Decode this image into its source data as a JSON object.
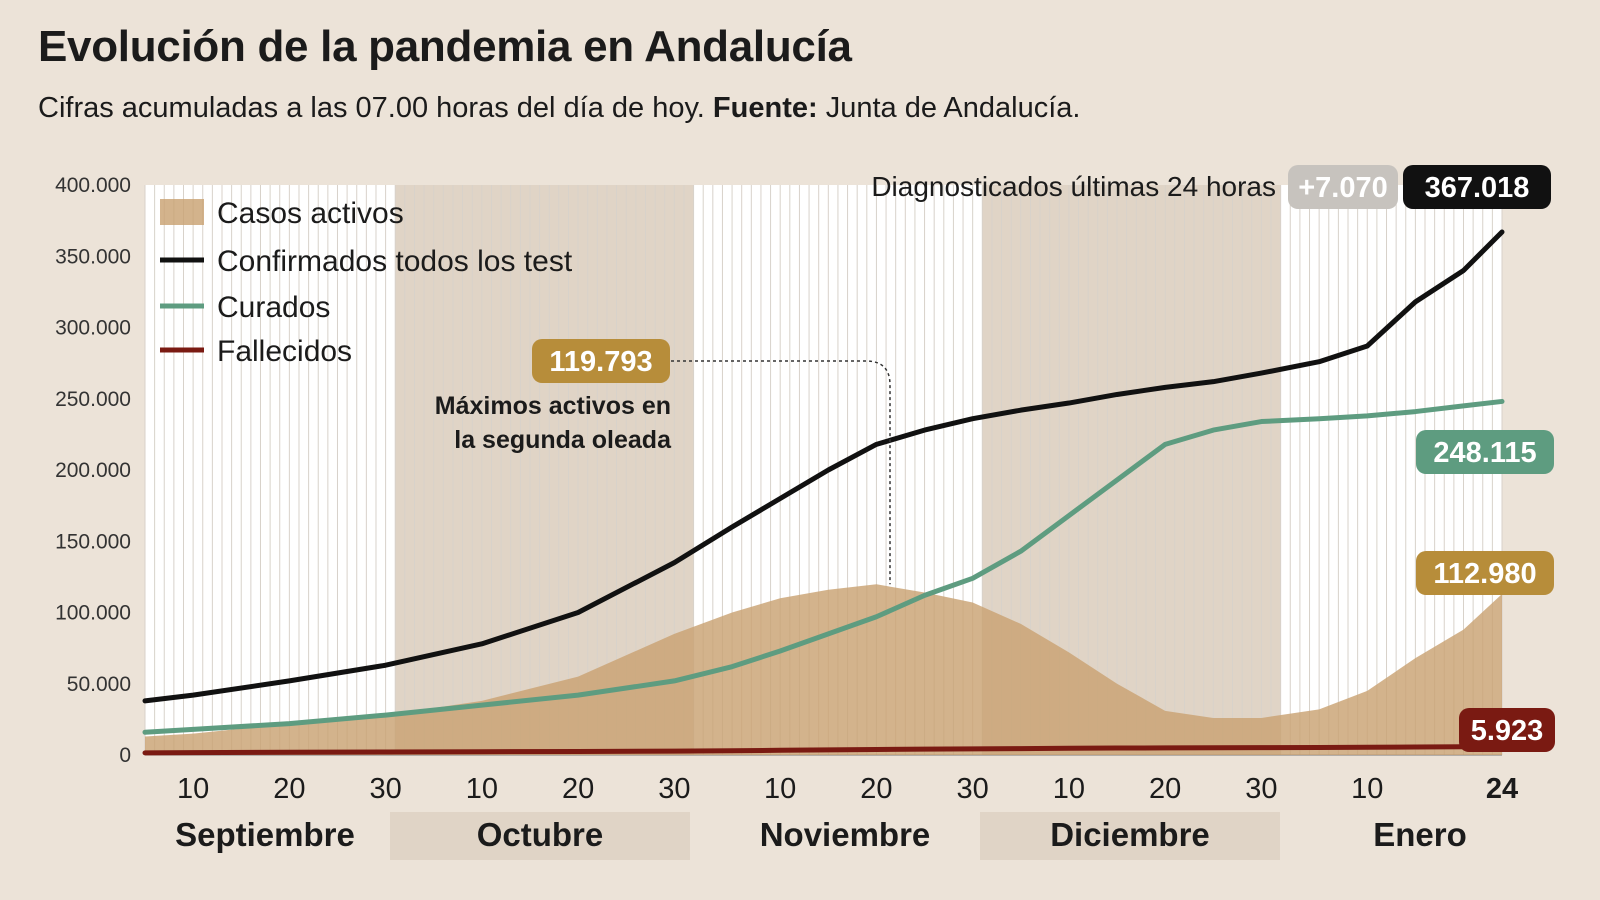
{
  "header": {
    "title": "Evolución de la pandemia en Andalucía",
    "subtitle_text": "Cifras acumuladas a las 07.00 horas del día de hoy.",
    "subtitle_source_label": "Fuente:",
    "subtitle_source": "Junta de Andalucía."
  },
  "colors": {
    "background": "#ece3d8",
    "band_white": "#ffffff",
    "band_shaded": "#e0d4c6",
    "activos": "#c9a273",
    "confirmados": "#111111",
    "curados": "#5e9c80",
    "fallecidos": "#7a1a12",
    "badge_gold": "#b78d3a",
    "badge_grey": "#c7c3be"
  },
  "annotations": {
    "diagnosticados_label": "Diagnosticados últimas 24 horas",
    "diagnosticados_delta": "+7.070",
    "confirmados_total": "367.018",
    "curados_total": "248.115",
    "activos_total": "112.980",
    "fallecidos_total": "5.923",
    "peak_value": "119.793",
    "peak_text_line1": "Máximos activos en",
    "peak_text_line2": "la segunda oleada"
  },
  "chart_data": {
    "type": "line",
    "title": "Evolución de la pandemia en Andalucía",
    "ylim": [
      0,
      400000
    ],
    "y_ticks": [
      0,
      50000,
      100000,
      150000,
      200000,
      250000,
      300000,
      350000,
      400000
    ],
    "y_tick_labels": [
      "0",
      "50.000",
      "100.000",
      "150.000",
      "200.000",
      "250.000",
      "300.000",
      "350.000",
      "400.000"
    ],
    "x": [
      "2020-09-05",
      "2020-09-10",
      "2020-09-20",
      "2020-09-30",
      "2020-10-10",
      "2020-10-20",
      "2020-10-30",
      "2020-11-05",
      "2020-11-10",
      "2020-11-15",
      "2020-11-20",
      "2020-11-25",
      "2020-11-30",
      "2020-12-05",
      "2020-12-10",
      "2020-12-15",
      "2020-12-20",
      "2020-12-25",
      "2020-12-30",
      "2021-01-05",
      "2021-01-10",
      "2021-01-15",
      "2021-01-20",
      "2021-01-24"
    ],
    "x_tick_labels": [
      "10",
      "20",
      "30",
      "10",
      "20",
      "30",
      "10",
      "20",
      "30",
      "10",
      "20",
      "30",
      "10",
      "24"
    ],
    "months": [
      "Septiembre",
      "Octubre",
      "Noviembre",
      "Diciembre",
      "Enero"
    ],
    "grid": true,
    "legend_position": "top-left",
    "series": [
      {
        "name": "Casos activos",
        "type": "area",
        "values": [
          13000,
          15000,
          22000,
          28000,
          38000,
          55000,
          85000,
          100000,
          110000,
          116000,
          119793,
          114000,
          107000,
          92000,
          72000,
          50000,
          31000,
          26000,
          26000,
          32000,
          45000,
          68000,
          88000,
          112980
        ]
      },
      {
        "name": "Confirmados todos los test",
        "type": "line",
        "values": [
          38000,
          42000,
          52000,
          63000,
          78000,
          100000,
          135000,
          160000,
          180000,
          200000,
          218000,
          228000,
          236000,
          242000,
          247000,
          253000,
          258000,
          262000,
          268000,
          276000,
          287000,
          318000,
          340000,
          367018
        ]
      },
      {
        "name": "Curados",
        "type": "line",
        "values": [
          16000,
          18000,
          22000,
          28000,
          35000,
          42000,
          52000,
          62000,
          73000,
          85000,
          97000,
          112000,
          124000,
          143000,
          168000,
          193000,
          218000,
          228000,
          234000,
          236000,
          238000,
          241000,
          245000,
          248115
        ]
      },
      {
        "name": "Fallecidos",
        "type": "line",
        "values": [
          1500,
          1700,
          1900,
          2100,
          2300,
          2500,
          2700,
          3000,
          3300,
          3600,
          3900,
          4100,
          4300,
          4500,
          4700,
          4900,
          5000,
          5100,
          5200,
          5300,
          5450,
          5600,
          5750,
          5923
        ]
      }
    ]
  }
}
